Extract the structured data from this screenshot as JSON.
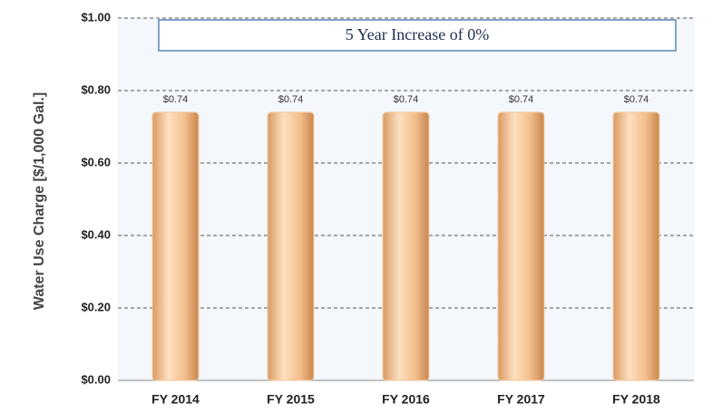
{
  "chart_data": {
    "type": "bar",
    "y_label": "Water Use Charge [$/1,000 Gal.]",
    "annotation": "5 Year Increase of 0%",
    "categories": [
      "FY 2014",
      "FY 2015",
      "FY 2016",
      "FY 2017",
      "FY 2018"
    ],
    "values": [
      0.74,
      0.74,
      0.74,
      0.74,
      0.74
    ],
    "value_labels": [
      "$0.74",
      "$0.74",
      "$0.74",
      "$0.74",
      "$0.74"
    ],
    "color": "#f5c596",
    "ylim": [
      0,
      1
    ],
    "yticks": [
      {
        "value": 0,
        "label": "$0.00"
      },
      {
        "value": 0.2,
        "label": "$0.20"
      },
      {
        "value": 0.4,
        "label": "$0.40"
      },
      {
        "value": 0.6,
        "label": "$0.60"
      },
      {
        "value": 0.8,
        "label": "$0.80"
      },
      {
        "value": 1,
        "label": "$1.00"
      }
    ],
    "grid": true
  }
}
